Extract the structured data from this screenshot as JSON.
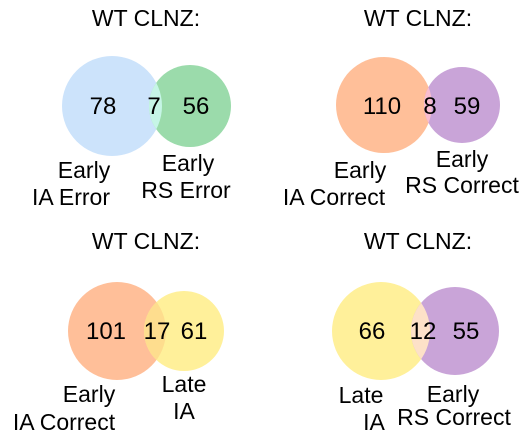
{
  "panels": [
    {
      "title": "WT CLNZ:",
      "left_only": "78",
      "overlap": "7",
      "right_only": "56",
      "left_label": [
        "Early",
        "IA Error"
      ],
      "right_label": [
        "Early",
        "RS Error"
      ],
      "colors": {
        "left": "#cce3fb",
        "right": "#9bdbab",
        "overlap": "#c6f5e6"
      }
    },
    {
      "title": "WT CLNZ:",
      "left_only": "110",
      "overlap": "8",
      "right_only": "59",
      "left_label": [
        "Early",
        "IA Correct"
      ],
      "right_label": [
        "Early",
        "RS Correct"
      ],
      "colors": {
        "left": "#ffbf99",
        "right": "#c9a4d8",
        "overlap": "#f9bdd0"
      }
    },
    {
      "title": "WT CLNZ:",
      "left_only": "101",
      "overlap": "17",
      "right_only": "61",
      "left_label": [
        "Early",
        "IA Correct"
      ],
      "right_label": [
        "Late",
        "IA"
      ],
      "colors": {
        "left": "#ffbf99",
        "right": "#fff09a",
        "overlap": "#fedd8e"
      }
    },
    {
      "title": "WT CLNZ:",
      "left_only": "66",
      "overlap": "12",
      "right_only": "55",
      "left_label": [
        "Late",
        "IA"
      ],
      "right_label": [
        "Early",
        "RS Correct"
      ],
      "colors": {
        "left": "#fff09a",
        "right": "#c9a4d8",
        "overlap": "#fde1c8"
      }
    }
  ]
}
